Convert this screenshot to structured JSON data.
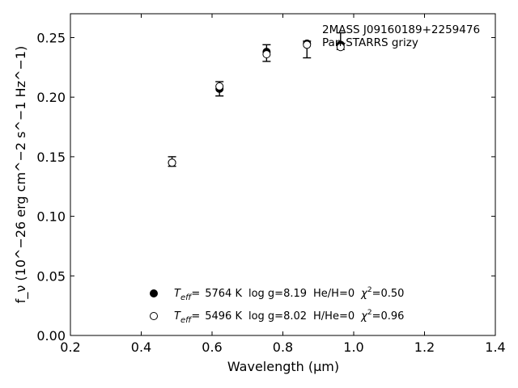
{
  "chart_data": {
    "type": "scatter",
    "xlabel": "Wavelength (μm)",
    "ylabel": "f_ν (10^−26 erg cm^−2 s^−1 Hz^−1)",
    "xlim": [
      0.2,
      1.4
    ],
    "ylim": [
      0.0,
      0.27
    ],
    "x_ticks": [
      "0.2",
      "0.4",
      "0.6",
      "0.8",
      "1.0",
      "1.2",
      "1.4"
    ],
    "y_ticks": [
      "0.00",
      "0.05",
      "0.10",
      "0.15",
      "0.20",
      "0.25"
    ],
    "annotation": [
      "2MASS J09160189+2259476",
      "Pan-STARRS grizy"
    ],
    "observed": {
      "x": [
        0.487,
        0.621,
        0.754,
        0.868,
        0.963
      ],
      "y": [
        0.146,
        0.207,
        0.237,
        0.24,
        0.247
      ],
      "yerr": [
        0.004,
        0.006,
        0.007,
        0.007,
        0.007
      ]
    },
    "series": [
      {
        "name": "T_eff= 5764 K log g=8.19 He/H=0 χ²=0.50",
        "marker": "filled-circle",
        "x": [
          0.487,
          0.621,
          0.754,
          0.868,
          0.963
        ],
        "y": [
          0.145,
          0.207,
          0.238,
          0.245,
          0.244
        ]
      },
      {
        "name": "T_eff= 5496 K log g=8.02 H/He=0 χ²=0.96",
        "marker": "open-circle",
        "x": [
          0.487,
          0.621,
          0.754,
          0.868,
          0.963
        ],
        "y": [
          0.145,
          0.209,
          0.236,
          0.244,
          0.242
        ]
      }
    ],
    "legend_placement": "lower-center",
    "grid": false
  },
  "legend": [
    {
      "teff_label": "=",
      "teff_value": "5764 K",
      "logg": "log g=8.19",
      "comp": "He/H=0",
      "chi": "=0.50"
    },
    {
      "teff_label": "=",
      "teff_value": "5496 K",
      "logg": "log g=8.02",
      "comp": "H/He=0",
      "chi": "=0.96"
    }
  ]
}
